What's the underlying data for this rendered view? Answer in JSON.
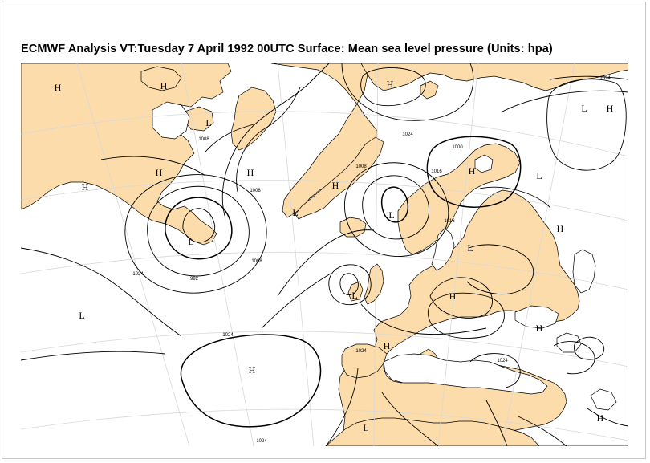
{
  "title": "ECMWF  Analysis VT:Tuesday 7 April 1992 00UTC Surface: Mean sea level pressure (Units: hpa)",
  "colors": {
    "land": "#fcdcaa",
    "sea": "#ffffff",
    "isobar": "#000000",
    "graticule": "#d8d8d8",
    "coastline": "#000000",
    "frame_border": "#c9c9c9"
  },
  "pressure_centers": [
    {
      "label": "H"
    },
    {
      "label": "H"
    },
    {
      "label": "H"
    },
    {
      "label": "H"
    },
    {
      "label": "L"
    },
    {
      "label": "H"
    },
    {
      "label": "H"
    },
    {
      "label": "L"
    },
    {
      "label": "H"
    },
    {
      "label": "H"
    },
    {
      "label": "L"
    },
    {
      "label": "L"
    },
    {
      "label": "L"
    },
    {
      "label": "H"
    },
    {
      "label": "L"
    },
    {
      "label": "L"
    },
    {
      "label": "L"
    },
    {
      "label": "H"
    },
    {
      "label": "H"
    },
    {
      "label": "H"
    },
    {
      "label": "H"
    },
    {
      "label": "H"
    },
    {
      "label": "L"
    },
    {
      "label": "H"
    },
    {
      "label": "L"
    }
  ],
  "isobar_labels": [
    {
      "text": "1024"
    },
    {
      "text": "1008"
    },
    {
      "text": "1024"
    },
    {
      "text": "1000"
    },
    {
      "text": "1008"
    },
    {
      "text": "992"
    },
    {
      "text": "1024"
    },
    {
      "text": "1008"
    },
    {
      "text": "1016"
    },
    {
      "text": "1024"
    },
    {
      "text": "1008"
    },
    {
      "text": "1016"
    },
    {
      "text": "1024"
    },
    {
      "text": "1024"
    },
    {
      "text": "1024"
    }
  ]
}
